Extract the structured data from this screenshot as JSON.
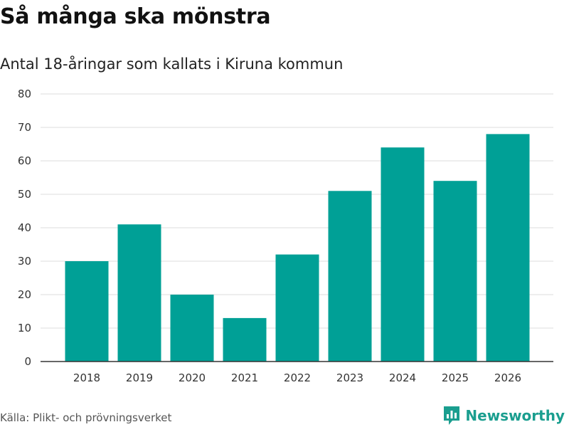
{
  "title": "Så många ska mönstra",
  "subtitle": "Antal 18-åringar som kallats i Kiruna kommun",
  "source": "Källa: Plikt- och prövningsverket",
  "brand": {
    "name": "Newsworthy",
    "icon": "bar-chart-logo-icon"
  },
  "colors": {
    "bar": "#00a096",
    "grid": "#dddddd",
    "axis": "#333333",
    "brand": "#1a9e8f"
  },
  "chart_data": {
    "type": "bar",
    "title": "Så många ska mönstra",
    "subtitle": "Antal 18-åringar som kallats i Kiruna kommun",
    "xlabel": "",
    "ylabel": "",
    "categories": [
      "2018",
      "2019",
      "2020",
      "2021",
      "2022",
      "2023",
      "2024",
      "2025",
      "2026"
    ],
    "values": [
      30,
      41,
      20,
      13,
      32,
      51,
      64,
      54,
      68
    ],
    "ylim": [
      0,
      80
    ],
    "yticks": [
      0,
      10,
      20,
      30,
      40,
      50,
      60,
      70,
      80
    ],
    "grid": true,
    "legend": "none"
  }
}
